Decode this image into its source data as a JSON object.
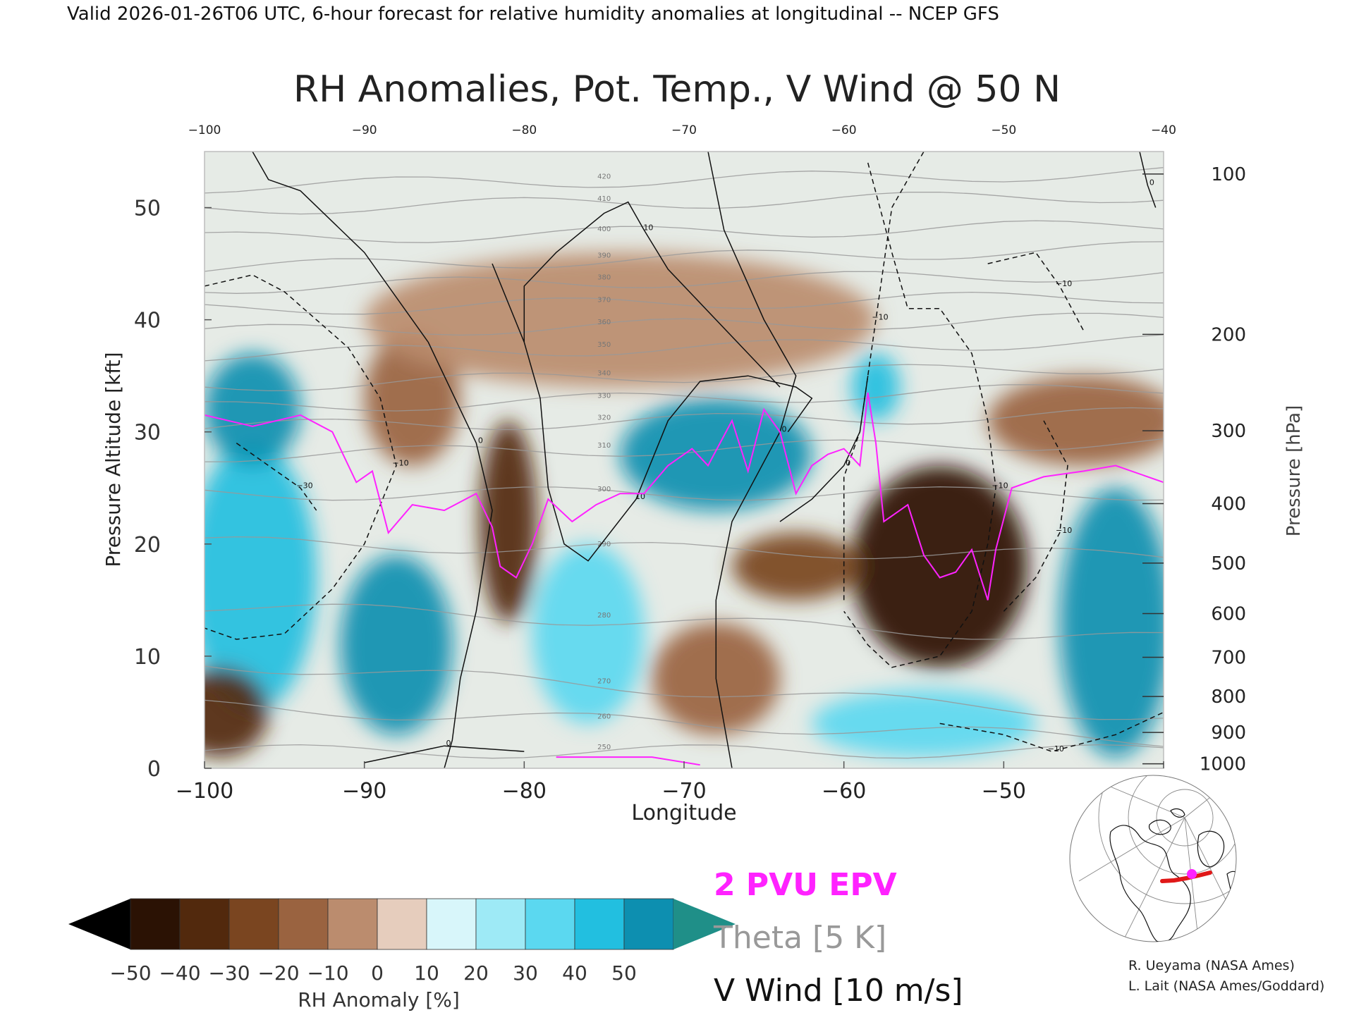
{
  "header": {
    "valid_line": "Valid 2026-01-26T06 UTC, 6-hour forecast for relative humidity anomalies at longitudinal -- NCEP GFS"
  },
  "colors": {
    "epv": "#ff22ff",
    "theta": "#999999",
    "vwind": "#111111",
    "map_line": "#e01818",
    "map_dot": "#ff22ff"
  },
  "chart_data": {
    "type": "heatmap",
    "title": "RH Anomalies, Pot. Temp., V Wind @ 50 N",
    "xlabel": "Longitude",
    "ylabel": "Pressure Altitude [kft]",
    "y2label": "Pressure [hPa]",
    "xlim": [
      -100,
      -40
    ],
    "ylim": [
      0,
      55
    ],
    "x_ticks": [
      -100,
      -90,
      -80,
      -70,
      -60,
      -50,
      -40
    ],
    "x_tick_labels": [
      "−100",
      "−90",
      "−80",
      "−70",
      "−60",
      "−50",
      "−40"
    ],
    "top_ticks": [
      -100,
      -90,
      -80,
      -70,
      -60,
      -50,
      -40
    ],
    "top_tick_labels": [
      "−100",
      "−90",
      "−80",
      "−70",
      "−60",
      "−50",
      "−40"
    ],
    "y_ticks": [
      0,
      10,
      20,
      30,
      40,
      50
    ],
    "pressure_axis": [
      {
        "hPa": 100,
        "kft": 53.0
      },
      {
        "hPa": 200,
        "kft": 38.7
      },
      {
        "hPa": 300,
        "kft": 30.1
      },
      {
        "hPa": 400,
        "kft": 23.6
      },
      {
        "hPa": 500,
        "kft": 18.3
      },
      {
        "hPa": 600,
        "kft": 13.8
      },
      {
        "hPa": 700,
        "kft": 9.9
      },
      {
        "hPa": 800,
        "kft": 6.4
      },
      {
        "hPa": 900,
        "kft": 3.2
      },
      {
        "hPa": 1000,
        "kft": 0.4
      }
    ],
    "colorbar": {
      "label": "RH Anomaly [%]",
      "ticks": [
        "−50",
        "−40",
        "−30",
        "−20",
        "−10",
        "0",
        "10",
        "20",
        "30",
        "40",
        "50"
      ],
      "under_color": "#000000",
      "over_color": "#1f8f88",
      "colors": [
        "#2b1204",
        "#52290d",
        "#7a4520",
        "#9a6340",
        "#bb8c6e",
        "#e6cdbd",
        "#d8f6fa",
        "#9eeaf6",
        "#5bd8f0",
        "#22bfe0",
        "#0d8fb0"
      ]
    },
    "legend": [
      {
        "label": "2 PVU EPV",
        "color": "#ff22ff"
      },
      {
        "label": "Theta [5 K]",
        "color": "#999999"
      },
      {
        "label": "V Wind [10 m/s]",
        "color": "#111111"
      }
    ],
    "rh_anomaly_blobs": [
      {
        "lon": -97,
        "kft": 17,
        "rx": 4.0,
        "ry": 12,
        "value": 40
      },
      {
        "lon": -88,
        "kft": 11,
        "rx": 3.5,
        "ry": 8,
        "value": 45
      },
      {
        "lon": -97,
        "kft": 32,
        "rx": 3.0,
        "ry": 5,
        "value": 45
      },
      {
        "lon": -76,
        "kft": 12,
        "rx": 3.5,
        "ry": 8,
        "value": 30
      },
      {
        "lon": -68,
        "kft": 28,
        "rx": 6.0,
        "ry": 5,
        "value": 45
      },
      {
        "lon": -58,
        "kft": 34,
        "rx": 1.5,
        "ry": 3,
        "value": 40
      },
      {
        "lon": -43,
        "kft": 13,
        "rx": 3.5,
        "ry": 12,
        "value": 45
      },
      {
        "lon": -55,
        "kft": 4,
        "rx": 7.0,
        "ry": 3,
        "value": 25
      },
      {
        "lon": -81,
        "kft": 22,
        "rx": 1.8,
        "ry": 9,
        "value": -45
      },
      {
        "lon": -54,
        "kft": 18,
        "rx": 5.5,
        "ry": 9,
        "value": -50
      },
      {
        "lon": -63,
        "kft": 18,
        "rx": 4.0,
        "ry": 3,
        "value": -35
      },
      {
        "lon": -99,
        "kft": 5,
        "rx": 3.0,
        "ry": 4,
        "value": -45
      },
      {
        "lon": -68,
        "kft": 8,
        "rx": 4.0,
        "ry": 5,
        "value": -25
      },
      {
        "lon": -87,
        "kft": 33,
        "rx": 3.0,
        "ry": 6,
        "value": -20
      },
      {
        "lon": -45,
        "kft": 31,
        "rx": 6.0,
        "ry": 4,
        "value": -25
      },
      {
        "lon": -74,
        "kft": 40,
        "rx": 16.0,
        "ry": 6,
        "value": -10
      }
    ],
    "theta_contours": [
      {
        "label": "250",
        "kft": 1.5,
        "slope": 0.0
      },
      {
        "label": "260",
        "kft": 4.0,
        "slope": -0.05
      },
      {
        "label": "270",
        "kft": 7.0,
        "slope": -0.08
      },
      {
        "label": "280",
        "kft": 13.0,
        "slope": -0.05
      },
      {
        "label": "290",
        "kft": 19.5,
        "slope": -0.02
      },
      {
        "label": "300",
        "kft": 24.5,
        "slope": 0.0
      },
      {
        "label": "310",
        "kft": 28.5,
        "slope": 0.02
      },
      {
        "label": "320",
        "kft": 31.0,
        "slope": 0.02
      },
      {
        "label": "330",
        "kft": 33.0,
        "slope": 0.03
      },
      {
        "label": "340",
        "kft": 35.0,
        "slope": 0.03
      },
      {
        "label": "350",
        "kft": 37.5,
        "slope": 0.02
      },
      {
        "label": "360",
        "kft": 39.5,
        "slope": 0.02
      },
      {
        "label": "370",
        "kft": 41.5,
        "slope": 0.02
      },
      {
        "label": "380",
        "kft": 43.5,
        "slope": 0.02
      },
      {
        "label": "390",
        "kft": 45.5,
        "slope": 0.03
      },
      {
        "label": "400",
        "kft": 47.8,
        "slope": 0.02
      },
      {
        "label": "410",
        "kft": 50.5,
        "slope": 0.02
      },
      {
        "label": "420",
        "kft": 52.5,
        "slope": 0.02
      }
    ],
    "epv_2pvu": [
      [
        -100,
        31.5
      ],
      [
        -97,
        30.5
      ],
      [
        -94,
        31.5
      ],
      [
        -92,
        30
      ],
      [
        -91,
        27
      ],
      [
        -90.5,
        25.5
      ],
      [
        -89.5,
        26.5
      ],
      [
        -88.5,
        21
      ],
      [
        -87,
        23.5
      ],
      [
        -85,
        23
      ],
      [
        -83,
        24.5
      ],
      [
        -82,
        21.5
      ],
      [
        -81.5,
        18
      ],
      [
        -80.5,
        17
      ],
      [
        -79.5,
        20
      ],
      [
        -78.5,
        24
      ],
      [
        -77,
        22
      ],
      [
        -75.5,
        23.5
      ],
      [
        -74,
        24.5
      ],
      [
        -72.5,
        24.5
      ],
      [
        -71,
        27
      ],
      [
        -69.5,
        28.5
      ],
      [
        -68.5,
        27
      ],
      [
        -67,
        31
      ],
      [
        -66,
        26.5
      ],
      [
        -65,
        32
      ],
      [
        -64,
        30
      ],
      [
        -63,
        24.5
      ],
      [
        -62,
        27
      ],
      [
        -61,
        28
      ],
      [
        -60,
        28.5
      ],
      [
        -59,
        27
      ],
      [
        -58.5,
        33.5
      ],
      [
        -58,
        29
      ],
      [
        -57.5,
        22
      ],
      [
        -56,
        23.5
      ],
      [
        -55,
        19
      ],
      [
        -54,
        17
      ],
      [
        -53,
        17.5
      ],
      [
        -52,
        19.5
      ],
      [
        -51,
        15
      ],
      [
        -50.5,
        19.5
      ],
      [
        -49.5,
        25
      ],
      [
        -47.5,
        26
      ],
      [
        -45,
        26.5
      ],
      [
        -43,
        27
      ],
      [
        -40,
        25.5
      ]
    ],
    "epv_2pvu_surface": [
      [
        -78,
        1
      ],
      [
        -72,
        1
      ],
      [
        -69,
        0.3
      ]
    ],
    "vwind_contours": [
      {
        "label": "0",
        "style": "solid",
        "points": [
          [
            -97,
            55
          ],
          [
            -96,
            52.5
          ],
          [
            -94,
            51.5
          ],
          [
            -90,
            46
          ],
          [
            -86,
            38
          ],
          [
            -83,
            29
          ],
          [
            -82,
            23
          ],
          [
            -83,
            14
          ],
          [
            -84,
            8
          ],
          [
            -84.5,
            2.5
          ],
          [
            -85,
            0
          ]
        ]
      },
      {
        "label": "0",
        "style": "solid",
        "points": [
          [
            -68.5,
            55
          ],
          [
            -67.5,
            48
          ],
          [
            -65,
            40
          ],
          [
            -63,
            35
          ],
          [
            -64,
            30
          ],
          [
            -67,
            22
          ],
          [
            -68,
            15
          ],
          [
            -68,
            8
          ],
          [
            -67,
            0
          ]
        ]
      },
      {
        "label": "10",
        "style": "solid",
        "points": [
          [
            -82,
            45
          ],
          [
            -80,
            38
          ],
          [
            -79,
            33
          ],
          [
            -78.5,
            25
          ],
          [
            -77.5,
            20
          ],
          [
            -76,
            18.5
          ],
          [
            -73,
            24
          ],
          [
            -71,
            31
          ],
          [
            -69,
            34.5
          ],
          [
            -66,
            35
          ],
          [
            -63,
            34
          ],
          [
            -62,
            33
          ],
          [
            -63.5,
            30
          ]
        ]
      },
      {
        "label": "10",
        "style": "solid",
        "points": [
          [
            -80,
            38
          ],
          [
            -80,
            43
          ],
          [
            -78,
            46
          ],
          [
            -75,
            49.5
          ],
          [
            -73.5,
            50.5
          ],
          [
            -72.5,
            48
          ],
          [
            -71,
            44.5
          ],
          [
            -68,
            40
          ],
          [
            -66,
            37
          ],
          [
            -64,
            34
          ]
        ]
      },
      {
        "label": "0",
        "style": "solid",
        "points": [
          [
            -58.5,
            35
          ],
          [
            -59,
            30
          ],
          [
            -60,
            27
          ],
          [
            -62,
            24
          ],
          [
            -64,
            22
          ]
        ]
      },
      {
        "label": "0",
        "style": "solid",
        "points": [
          [
            -90,
            0.5
          ],
          [
            -85,
            2
          ],
          [
            -80,
            1.5
          ]
        ]
      },
      {
        "label": "0",
        "style": "solid",
        "points": [
          [
            -41.5,
            55
          ],
          [
            -41,
            52
          ],
          [
            -40.5,
            50
          ]
        ]
      },
      {
        "label": "−10",
        "style": "dashed",
        "points": [
          [
            -100,
            43
          ],
          [
            -97,
            44
          ],
          [
            -95,
            42.5
          ],
          [
            -91,
            37.5
          ],
          [
            -89,
            33
          ],
          [
            -88,
            27
          ],
          [
            -90,
            20
          ],
          [
            -92,
            16
          ],
          [
            -95,
            12
          ],
          [
            -98,
            11.5
          ],
          [
            -100,
            12.5
          ]
        ]
      },
      {
        "label": "−10",
        "style": "dashed",
        "points": [
          [
            -60,
            15
          ],
          [
            -60,
            26
          ],
          [
            -59,
            30
          ],
          [
            -58,
            40
          ],
          [
            -57,
            50
          ],
          [
            -55,
            55
          ]
        ]
      },
      {
        "label": "−10",
        "style": "dashed",
        "points": [
          [
            -58.5,
            54
          ],
          [
            -57,
            46
          ],
          [
            -56,
            41
          ],
          [
            -54,
            41
          ],
          [
            -52,
            37
          ],
          [
            -51,
            31
          ],
          [
            -50.5,
            25
          ],
          [
            -51,
            20
          ],
          [
            -52,
            14
          ],
          [
            -54,
            10
          ],
          [
            -57,
            9
          ],
          [
            -58.5,
            11
          ],
          [
            -60,
            14
          ]
        ]
      },
      {
        "label": "−10",
        "style": "dashed",
        "points": [
          [
            -51,
            45
          ],
          [
            -48,
            46
          ],
          [
            -46.5,
            43
          ],
          [
            -45,
            39
          ]
        ]
      },
      {
        "label": "−10",
        "style": "dashed",
        "points": [
          [
            -50,
            14
          ],
          [
            -48,
            17
          ],
          [
            -46.5,
            21
          ],
          [
            -46,
            27
          ],
          [
            -47.5,
            31
          ]
        ]
      },
      {
        "label": "−10",
        "style": "dashed",
        "points": [
          [
            -54,
            4
          ],
          [
            -50,
            3
          ],
          [
            -47,
            1.5
          ],
          [
            -43,
            3
          ],
          [
            -40,
            5
          ]
        ]
      },
      {
        "label": "−30",
        "style": "dashed",
        "points": [
          [
            -98,
            29
          ],
          [
            -96,
            27
          ],
          [
            -94,
            25
          ],
          [
            -93,
            23
          ]
        ]
      }
    ]
  },
  "inset_map": {
    "label": "Location map"
  },
  "credits": {
    "line1": "R. Ueyama (NASA Ames)",
    "line2": "L. Lait (NASA Ames/Goddard)"
  }
}
